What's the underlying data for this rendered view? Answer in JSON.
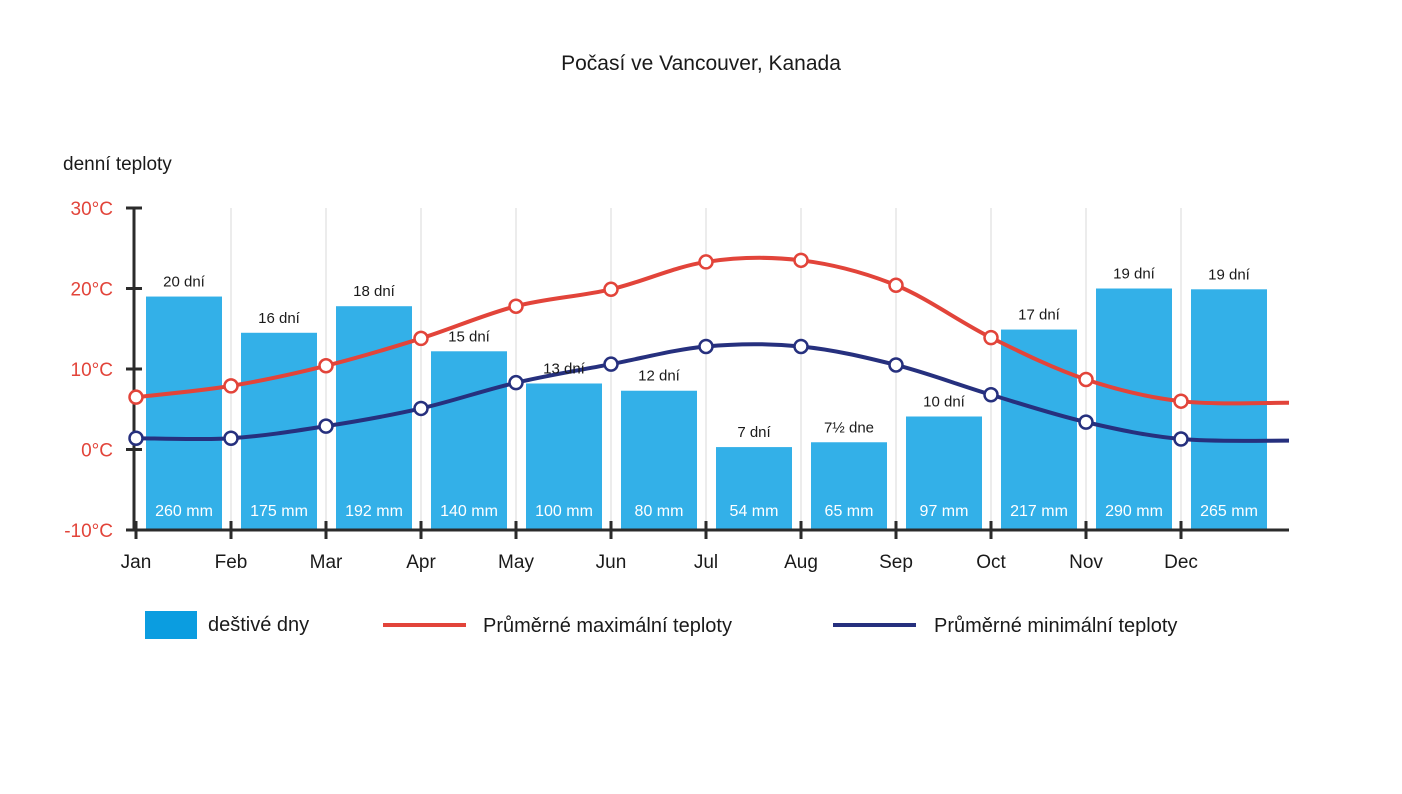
{
  "chart_data": {
    "type": "bar",
    "title": "Počasí ve Vancouver, Kanada",
    "ylabel": "denní teploty",
    "ylim": [
      -10,
      30
    ],
    "yticks": [
      "30°C",
      "20°C",
      "10°C",
      "0°C",
      "-10°C"
    ],
    "ytick_values": [
      30,
      20,
      10,
      0,
      -10
    ],
    "categories": [
      "Jan",
      "Feb",
      "Mar",
      "Apr",
      "May",
      "Jun",
      "Jul",
      "Aug",
      "Sep",
      "Oct",
      "Nov",
      "Dec"
    ],
    "rain_days": [
      20,
      16,
      18,
      15,
      13,
      12,
      7,
      7.5,
      10,
      17,
      19,
      19
    ],
    "rain_days_labels": [
      "20 dní",
      "16 dní",
      "18 dní",
      "15 dní",
      "13 dní",
      "12 dní",
      "7 dní",
      "7½ dne",
      "10 dní",
      "17 dní",
      "19 dní",
      "19 dní"
    ],
    "rainfall_labels": [
      "260 mm",
      "175 mm",
      "192 mm",
      "140 mm",
      "100 mm",
      "80 mm",
      "54 mm",
      "65 mm",
      "97 mm",
      "217 mm",
      "290 mm",
      "265 mm"
    ],
    "series": [
      {
        "name": "deštivé dny",
        "type": "bar",
        "color": "#33b0e8",
        "values": [
          19,
          14.5,
          17.8,
          12.2,
          8.2,
          7.3,
          0.3,
          0.9,
          4.1,
          14.9,
          20,
          19.9
        ]
      },
      {
        "name": "Průměrné maximální teploty",
        "type": "line",
        "color": "#e2443a",
        "values": [
          6.5,
          7.9,
          10.4,
          13.8,
          17.8,
          19.9,
          23.3,
          23.5,
          20.4,
          13.9,
          8.7,
          6
        ]
      },
      {
        "name": "Průměrné minimální teploty",
        "type": "line",
        "color": "#26307e",
        "values": [
          1.4,
          1.4,
          2.9,
          5.1,
          8.3,
          10.6,
          12.8,
          12.8,
          10.5,
          6.8,
          3.4,
          1.3
        ]
      }
    ],
    "legend": {
      "position": "bottom",
      "items": [
        "deštivé dny",
        "Průměrné maximální teploty",
        "Průměrné minimální teploty"
      ]
    },
    "grid": "vertical"
  }
}
